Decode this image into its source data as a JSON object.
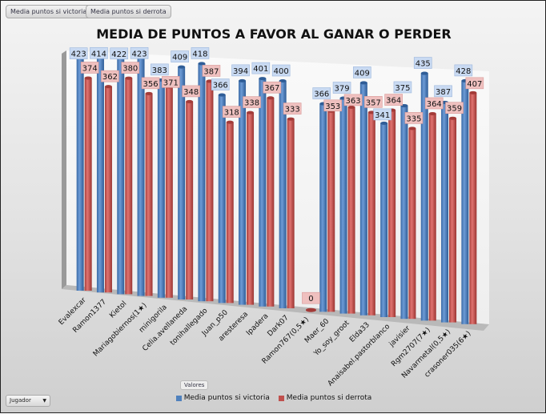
{
  "filter_buttons": [
    "Media puntos si victoria",
    "Media puntos si derrota"
  ],
  "valores_label": "Valores",
  "jugador_dropdown": "Jugador",
  "colors": {
    "victoria": "#4f81bd",
    "derrota": "#c0504d"
  },
  "chart_data": {
    "type": "bar",
    "title": "MEDIA DE PUNTOS A FAVOR AL GANAR O PERDER",
    "categories": [
      "Evalexcar",
      "Ramon1377",
      "Kietol",
      "Mariagobiernos(1★)",
      "minigorila",
      "Celia.avellaneda",
      "tonihallegado",
      "Juan_p50",
      "aresteresa",
      "Ipadera",
      "Dark07",
      "Ramon767(0,5★)",
      "Maer_60",
      "Yo_soy_groot",
      "Elda33",
      "Anaisabel.pastorblanco",
      "javisier",
      "Rgm2707(7★)",
      "Navarmetal(0,5★)",
      "crasoner035(6★)"
    ],
    "series": [
      {
        "name": "Media puntos si victoria",
        "values": [
          423,
          414,
          422,
          423,
          383,
          409,
          418,
          366,
          394,
          401,
          400,
          null,
          366,
          379,
          409,
          341,
          375,
          435,
          387,
          428
        ]
      },
      {
        "name": "Media puntos si derrota",
        "values": [
          374,
          362,
          380,
          356,
          371,
          348,
          387,
          318,
          338,
          367,
          333,
          0,
          353,
          363,
          357,
          364,
          335,
          364,
          359,
          407
        ]
      }
    ],
    "legend": "bottom",
    "grid": false,
    "ylim": [
      0,
      450
    ]
  }
}
